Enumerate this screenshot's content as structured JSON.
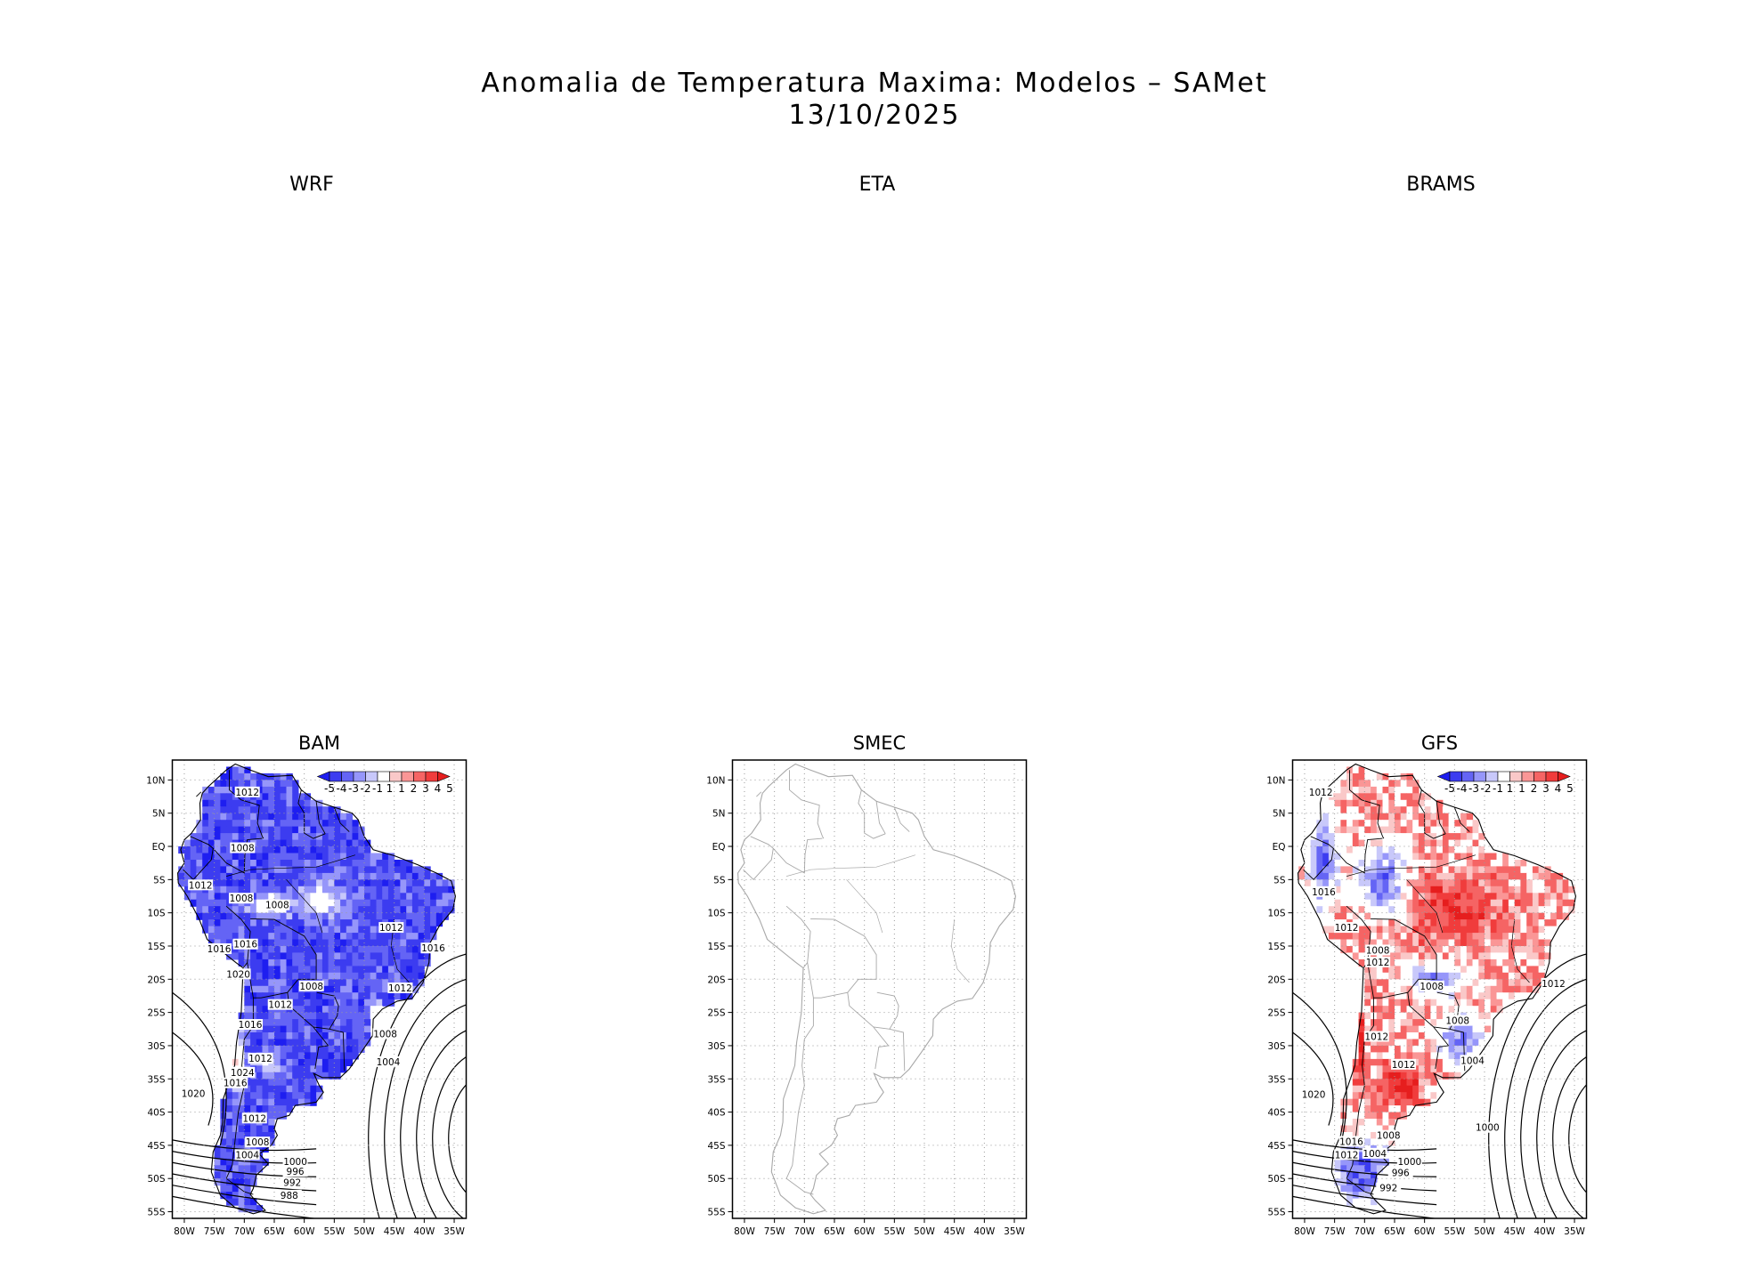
{
  "figure": {
    "title_line1": "Anomalia de Temperatura Maxima: Modelos – SAMet",
    "title_line2": "13/10/2025"
  },
  "chart_data": [
    {
      "type": "heatmap",
      "title": "WRF"
    },
    {
      "type": "heatmap",
      "title": "ETA"
    },
    {
      "type": "heatmap",
      "title": "BRAMS"
    },
    {
      "type": "heatmap",
      "title": "BAM",
      "lon_ticks": [
        "80W",
        "75W",
        "70W",
        "65W",
        "60W",
        "55W",
        "50W",
        "45W",
        "40W",
        "35W"
      ],
      "lat_ticks": [
        "10N",
        "5N",
        "EQ",
        "5S",
        "10S",
        "15S",
        "20S",
        "25S",
        "30S",
        "35S",
        "40S",
        "45S",
        "50S",
        "55S"
      ],
      "xlim": [
        -82,
        -33
      ],
      "ylim": [
        -56,
        13
      ],
      "colorbar": {
        "labels": [
          "-5",
          "-4",
          "-3",
          "-2",
          "-1",
          "1",
          "1",
          "2",
          "3",
          "4",
          "5"
        ],
        "colors": [
          "#1e1ef0",
          "#3c3cf0",
          "#6464f5",
          "#9696fa",
          "#c8c8fa",
          "#ffffff",
          "#fac8c8",
          "#fa9696",
          "#f56464",
          "#f03c3c",
          "#e61e1e"
        ]
      },
      "isobars": [
        {
          "label": "1012",
          "lon": -69.5,
          "lat": 8.2
        },
        {
          "label": "1008",
          "lon": -70.3,
          "lat": -0.2
        },
        {
          "label": "1012",
          "lon": -77.3,
          "lat": -5.8
        },
        {
          "label": "1008",
          "lon": -70.5,
          "lat": -7.8
        },
        {
          "label": "1008",
          "lon": -64.5,
          "lat": -8.8
        },
        {
          "label": "1012",
          "lon": -45.5,
          "lat": -12.2
        },
        {
          "label": "1016",
          "lon": -69.8,
          "lat": -14.7
        },
        {
          "label": "1016",
          "lon": -74.2,
          "lat": -15.4
        },
        {
          "label": "1016",
          "lon": -38.5,
          "lat": -15.3
        },
        {
          "label": "1020",
          "lon": -71.0,
          "lat": -19.2
        },
        {
          "label": "1008",
          "lon": -58.8,
          "lat": -21.0
        },
        {
          "label": "1012",
          "lon": -44.0,
          "lat": -21.3
        },
        {
          "label": "1012",
          "lon": -64.0,
          "lat": -23.8
        },
        {
          "label": "1016",
          "lon": -69.0,
          "lat": -26.8
        },
        {
          "label": "1008",
          "lon": -46.5,
          "lat": -28.2
        },
        {
          "label": "1012",
          "lon": -67.3,
          "lat": -31.9
        },
        {
          "label": "1004",
          "lon": -46.0,
          "lat": -32.4
        },
        {
          "label": "1024",
          "lon": -70.3,
          "lat": -34.0
        },
        {
          "label": "1016",
          "lon": -71.5,
          "lat": -35.6
        },
        {
          "label": "1020",
          "lon": -78.5,
          "lat": -37.2
        },
        {
          "label": "1012",
          "lon": -68.3,
          "lat": -40.9
        },
        {
          "label": "1008",
          "lon": -67.8,
          "lat": -44.5
        },
        {
          "label": "1004",
          "lon": -69.5,
          "lat": -46.4
        },
        {
          "label": "1000",
          "lon": -61.5,
          "lat": -47.4
        },
        {
          "label": "996",
          "lon": -61.5,
          "lat": -48.9
        },
        {
          "label": "992",
          "lon": -62.0,
          "lat": -50.6
        },
        {
          "label": "988",
          "lon": -62.5,
          "lat": -52.5
        }
      ]
    },
    {
      "type": "heatmap",
      "title": "SMEC",
      "lon_ticks": [
        "80W",
        "75W",
        "70W",
        "65W",
        "60W",
        "55W",
        "50W",
        "45W",
        "40W",
        "35W"
      ],
      "lat_ticks": [
        "10N",
        "5N",
        "EQ",
        "5S",
        "10S",
        "15S",
        "20S",
        "25S",
        "30S",
        "35S",
        "40S",
        "45S",
        "50S",
        "55S"
      ],
      "xlim": [
        -82,
        -33
      ],
      "ylim": [
        -56,
        13
      ]
    },
    {
      "type": "heatmap",
      "title": "GFS",
      "lon_ticks": [
        "80W",
        "75W",
        "70W",
        "65W",
        "60W",
        "55W",
        "50W",
        "45W",
        "40W",
        "35W"
      ],
      "lat_ticks": [
        "10N",
        "5N",
        "EQ",
        "5S",
        "10S",
        "15S",
        "20S",
        "25S",
        "30S",
        "35S",
        "40S",
        "45S",
        "50S",
        "55S"
      ],
      "xlim": [
        -82,
        -33
      ],
      "ylim": [
        -56,
        13
      ],
      "colorbar": {
        "labels": [
          "-5",
          "-4",
          "-3",
          "-2",
          "-1",
          "1",
          "1",
          "2",
          "3",
          "4",
          "5"
        ],
        "colors": [
          "#1e1ef0",
          "#3c3cf0",
          "#6464f5",
          "#9696fa",
          "#c8c8fa",
          "#ffffff",
          "#fac8c8",
          "#fa9696",
          "#f56464",
          "#f03c3c",
          "#e61e1e"
        ]
      },
      "isobars": [
        {
          "label": "1012",
          "lon": -77.3,
          "lat": 8.2
        },
        {
          "label": "1016",
          "lon": -76.8,
          "lat": -6.8
        },
        {
          "label": "1012",
          "lon": -73.0,
          "lat": -12.2
        },
        {
          "label": "1008",
          "lon": -67.8,
          "lat": -15.6
        },
        {
          "label": "1012",
          "lon": -67.8,
          "lat": -17.4
        },
        {
          "label": "1008",
          "lon": -58.8,
          "lat": -21.0
        },
        {
          "label": "1008",
          "lon": -54.5,
          "lat": -26.2
        },
        {
          "label": "1012",
          "lon": -38.5,
          "lat": -20.6
        },
        {
          "label": "1012",
          "lon": -68.0,
          "lat": -28.6
        },
        {
          "label": "1012",
          "lon": -63.5,
          "lat": -32.8
        },
        {
          "label": "1004",
          "lon": -52.0,
          "lat": -32.2
        },
        {
          "label": "1020",
          "lon": -78.5,
          "lat": -37.3
        },
        {
          "label": "1000",
          "lon": -49.5,
          "lat": -42.3
        },
        {
          "label": "1008",
          "lon": -66.0,
          "lat": -43.5
        },
        {
          "label": "1016",
          "lon": -72.2,
          "lat": -44.4
        },
        {
          "label": "1012",
          "lon": -73.0,
          "lat": -46.4
        },
        {
          "label": "1004",
          "lon": -68.3,
          "lat": -46.2
        },
        {
          "label": "1000",
          "lon": -62.5,
          "lat": -47.4
        },
        {
          "label": "996",
          "lon": -64.0,
          "lat": -49.1
        },
        {
          "label": "992",
          "lon": -66.0,
          "lat": -51.4
        }
      ]
    }
  ]
}
